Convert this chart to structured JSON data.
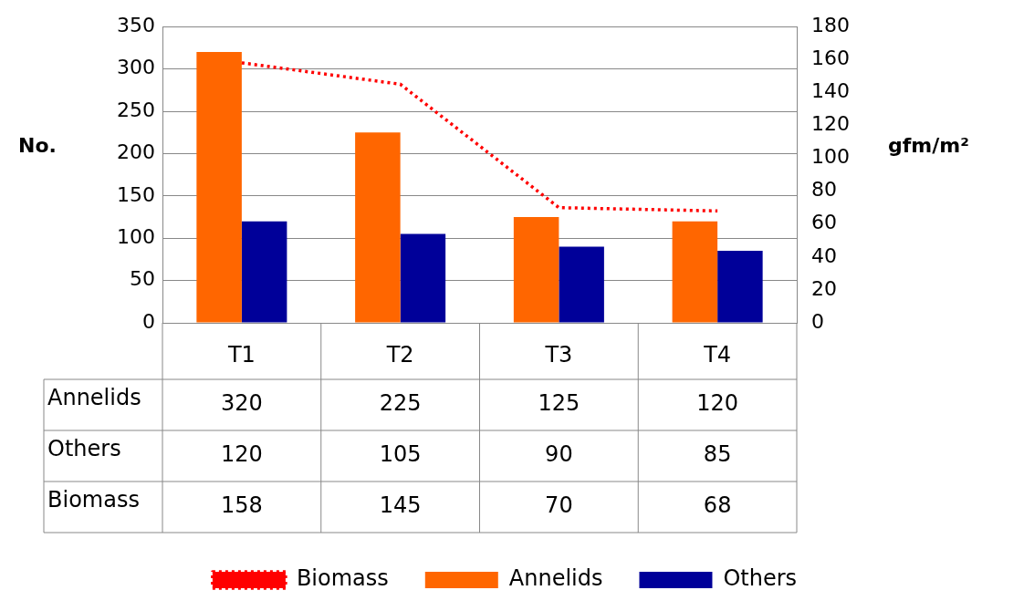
{
  "chart_data": {
    "type": "bar",
    "categories": [
      "T1",
      "T2",
      "T3",
      "T4"
    ],
    "series": [
      {
        "name": "Annelids",
        "color": "#ff6600",
        "values": [
          320,
          225,
          125,
          120
        ]
      },
      {
        "name": "Others",
        "color": "#000099",
        "values": [
          120,
          105,
          90,
          85
        ]
      },
      {
        "name": "Biomass",
        "type": "line",
        "axis": "y2",
        "color": "#ff0000",
        "line_style": "dotted",
        "marker": "none",
        "values": [
          158,
          145,
          70,
          68
        ]
      }
    ],
    "ylabel": "No.",
    "y2label": "gfm/m²",
    "ylim": [
      0,
      350
    ],
    "yticks": [
      0,
      50,
      100,
      150,
      200,
      250,
      300,
      350
    ],
    "y2lim": [
      0,
      180
    ],
    "y2ticks": [
      0,
      20,
      40,
      60,
      80,
      100,
      120,
      140,
      160,
      180
    ],
    "grid": "y",
    "legend": "bottom",
    "data_labels": true
  }
}
